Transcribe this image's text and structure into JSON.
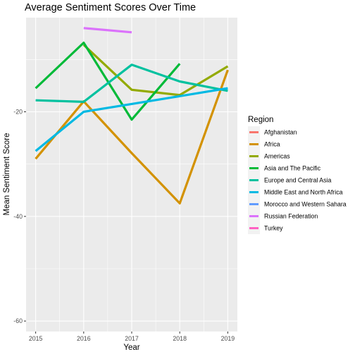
{
  "chart_data": {
    "type": "line",
    "title": "Average Sentiment Scores Over Time",
    "xlabel": "Year",
    "ylabel": "Mean Sentiment Score",
    "x_ticks": [
      2015,
      2016,
      2017,
      2018,
      2019
    ],
    "y_ticks": [
      -60,
      -40,
      -20
    ],
    "xlim": [
      2014.8,
      2019.2
    ],
    "ylim": [
      -62,
      -2
    ],
    "grid": true,
    "legend": {
      "title": "Region",
      "placement": "right"
    },
    "series": [
      {
        "name": "Afghanistan",
        "color": "#F8766D",
        "points": []
      },
      {
        "name": "Africa",
        "color": "#D39200",
        "points": [
          [
            2015,
            -29
          ],
          [
            2016,
            -18.0
          ],
          [
            2017,
            -27.9
          ],
          [
            2018,
            -37.5
          ],
          [
            2019,
            -12.0
          ]
        ]
      },
      {
        "name": "Americas",
        "color": "#93AA00",
        "points": [
          [
            2016,
            -7.2
          ],
          [
            2017,
            -15.8
          ],
          [
            2018,
            -16.8
          ],
          [
            2019,
            -11.3
          ]
        ]
      },
      {
        "name": "Asia and The Pacific",
        "color": "#00BA38",
        "points": [
          [
            2015,
            -15.5
          ],
          [
            2016,
            -6.8
          ],
          [
            2017,
            -21.5
          ],
          [
            2018,
            -10.8
          ]
        ]
      },
      {
        "name": "Europe and Central Asia",
        "color": "#00C19F",
        "points": [
          [
            2015,
            -17.8
          ],
          [
            2016,
            -18.1
          ],
          [
            2017,
            -11.0
          ],
          [
            2018,
            -14.2
          ],
          [
            2019,
            -16.0
          ]
        ]
      },
      {
        "name": "Middle East and North Africa",
        "color": "#00B9E3",
        "points": [
          [
            2015,
            -27.5
          ],
          [
            2016,
            -20.0
          ],
          [
            2017,
            -18.5
          ],
          [
            2018,
            -17.0
          ],
          [
            2019,
            -15.5
          ]
        ]
      },
      {
        "name": "Morocco and Western Sahara",
        "color": "#619CFF",
        "points": []
      },
      {
        "name": "Russian Federation",
        "color": "#DB72FB",
        "points": [
          [
            2016,
            -4.0
          ],
          [
            2017,
            -4.8
          ]
        ]
      },
      {
        "name": "Turkey",
        "color": "#FF61C3",
        "points": []
      }
    ]
  }
}
